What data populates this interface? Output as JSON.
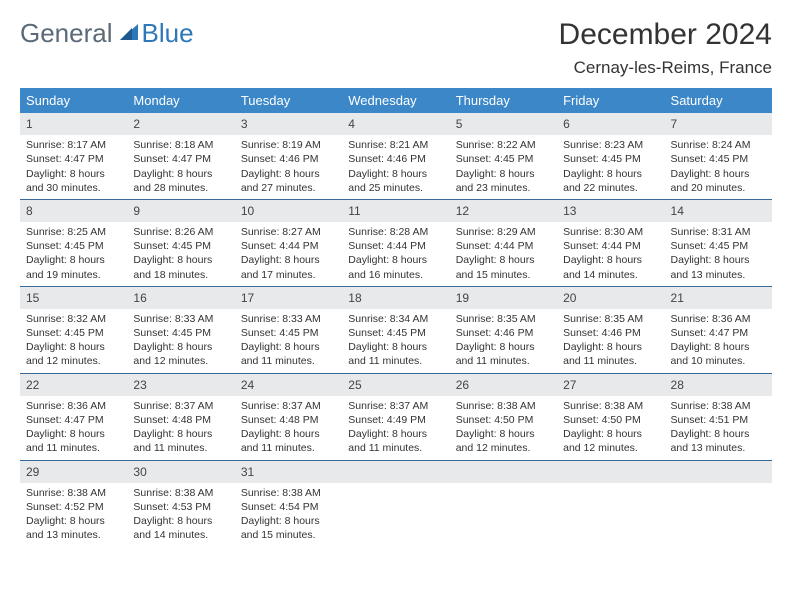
{
  "logo": {
    "text1": "General",
    "text2": "Blue"
  },
  "title": "December 2024",
  "location": "Cernay-les-Reims, France",
  "colors": {
    "header_bg": "#3b87c8",
    "header_text": "#ffffff",
    "daynum_bg": "#e8e9ea",
    "row_border": "#3b6a9a",
    "logo_gray": "#5a6a78",
    "logo_blue": "#2f78b8"
  },
  "weekdays": [
    "Sunday",
    "Monday",
    "Tuesday",
    "Wednesday",
    "Thursday",
    "Friday",
    "Saturday"
  ],
  "weeks": [
    [
      {
        "n": "1",
        "sr": "8:17 AM",
        "ss": "4:47 PM",
        "dl": "8 hours and 30 minutes."
      },
      {
        "n": "2",
        "sr": "8:18 AM",
        "ss": "4:47 PM",
        "dl": "8 hours and 28 minutes."
      },
      {
        "n": "3",
        "sr": "8:19 AM",
        "ss": "4:46 PM",
        "dl": "8 hours and 27 minutes."
      },
      {
        "n": "4",
        "sr": "8:21 AM",
        "ss": "4:46 PM",
        "dl": "8 hours and 25 minutes."
      },
      {
        "n": "5",
        "sr": "8:22 AM",
        "ss": "4:45 PM",
        "dl": "8 hours and 23 minutes."
      },
      {
        "n": "6",
        "sr": "8:23 AM",
        "ss": "4:45 PM",
        "dl": "8 hours and 22 minutes."
      },
      {
        "n": "7",
        "sr": "8:24 AM",
        "ss": "4:45 PM",
        "dl": "8 hours and 20 minutes."
      }
    ],
    [
      {
        "n": "8",
        "sr": "8:25 AM",
        "ss": "4:45 PM",
        "dl": "8 hours and 19 minutes."
      },
      {
        "n": "9",
        "sr": "8:26 AM",
        "ss": "4:45 PM",
        "dl": "8 hours and 18 minutes."
      },
      {
        "n": "10",
        "sr": "8:27 AM",
        "ss": "4:44 PM",
        "dl": "8 hours and 17 minutes."
      },
      {
        "n": "11",
        "sr": "8:28 AM",
        "ss": "4:44 PM",
        "dl": "8 hours and 16 minutes."
      },
      {
        "n": "12",
        "sr": "8:29 AM",
        "ss": "4:44 PM",
        "dl": "8 hours and 15 minutes."
      },
      {
        "n": "13",
        "sr": "8:30 AM",
        "ss": "4:44 PM",
        "dl": "8 hours and 14 minutes."
      },
      {
        "n": "14",
        "sr": "8:31 AM",
        "ss": "4:45 PM",
        "dl": "8 hours and 13 minutes."
      }
    ],
    [
      {
        "n": "15",
        "sr": "8:32 AM",
        "ss": "4:45 PM",
        "dl": "8 hours and 12 minutes."
      },
      {
        "n": "16",
        "sr": "8:33 AM",
        "ss": "4:45 PM",
        "dl": "8 hours and 12 minutes."
      },
      {
        "n": "17",
        "sr": "8:33 AM",
        "ss": "4:45 PM",
        "dl": "8 hours and 11 minutes."
      },
      {
        "n": "18",
        "sr": "8:34 AM",
        "ss": "4:45 PM",
        "dl": "8 hours and 11 minutes."
      },
      {
        "n": "19",
        "sr": "8:35 AM",
        "ss": "4:46 PM",
        "dl": "8 hours and 11 minutes."
      },
      {
        "n": "20",
        "sr": "8:35 AM",
        "ss": "4:46 PM",
        "dl": "8 hours and 11 minutes."
      },
      {
        "n": "21",
        "sr": "8:36 AM",
        "ss": "4:47 PM",
        "dl": "8 hours and 10 minutes."
      }
    ],
    [
      {
        "n": "22",
        "sr": "8:36 AM",
        "ss": "4:47 PM",
        "dl": "8 hours and 11 minutes."
      },
      {
        "n": "23",
        "sr": "8:37 AM",
        "ss": "4:48 PM",
        "dl": "8 hours and 11 minutes."
      },
      {
        "n": "24",
        "sr": "8:37 AM",
        "ss": "4:48 PM",
        "dl": "8 hours and 11 minutes."
      },
      {
        "n": "25",
        "sr": "8:37 AM",
        "ss": "4:49 PM",
        "dl": "8 hours and 11 minutes."
      },
      {
        "n": "26",
        "sr": "8:38 AM",
        "ss": "4:50 PM",
        "dl": "8 hours and 12 minutes."
      },
      {
        "n": "27",
        "sr": "8:38 AM",
        "ss": "4:50 PM",
        "dl": "8 hours and 12 minutes."
      },
      {
        "n": "28",
        "sr": "8:38 AM",
        "ss": "4:51 PM",
        "dl": "8 hours and 13 minutes."
      }
    ],
    [
      {
        "n": "29",
        "sr": "8:38 AM",
        "ss": "4:52 PM",
        "dl": "8 hours and 13 minutes."
      },
      {
        "n": "30",
        "sr": "8:38 AM",
        "ss": "4:53 PM",
        "dl": "8 hours and 14 minutes."
      },
      {
        "n": "31",
        "sr": "8:38 AM",
        "ss": "4:54 PM",
        "dl": "8 hours and 15 minutes."
      },
      null,
      null,
      null,
      null
    ]
  ],
  "labels": {
    "sunrise": "Sunrise:",
    "sunset": "Sunset:",
    "daylight": "Daylight:"
  }
}
